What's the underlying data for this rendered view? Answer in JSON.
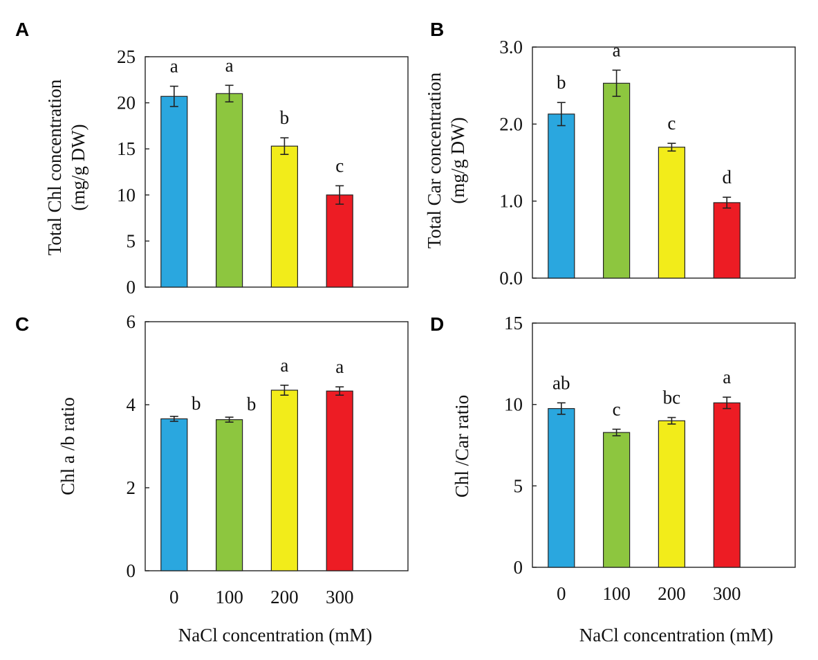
{
  "figure": {
    "xlabel": "NaCl concentration  (mM)",
    "categories": [
      "0",
      "100",
      "200",
      "300"
    ],
    "bar_colors": [
      "#2aa7df",
      "#8dc63f",
      "#f2ec1a",
      "#ed1c24"
    ]
  },
  "chart_data": [
    {
      "panel": "A",
      "type": "bar",
      "ylabel_lines": [
        "Total Chl concentration",
        "(mg/g DW)"
      ],
      "categories": [
        "0",
        "100",
        "200",
        "300"
      ],
      "values": [
        20.7,
        21.0,
        15.3,
        10.0
      ],
      "errors": [
        1.1,
        0.9,
        0.9,
        1.0
      ],
      "letters": [
        "a",
        "a",
        "b",
        "c"
      ],
      "ylim": [
        0,
        25
      ],
      "yticks": [
        0,
        5,
        10,
        15,
        20,
        25
      ],
      "ytick_labels": [
        "0",
        "5",
        "10",
        "15",
        "20",
        "25"
      ],
      "show_xticklabels": false
    },
    {
      "panel": "B",
      "type": "bar",
      "ylabel_lines": [
        "Total Car concentration",
        "(mg/g DW)"
      ],
      "categories": [
        "0",
        "100",
        "200",
        "300"
      ],
      "values": [
        2.13,
        2.53,
        1.7,
        0.98
      ],
      "errors": [
        0.15,
        0.17,
        0.05,
        0.07
      ],
      "letters": [
        "b",
        "a",
        "c",
        "d"
      ],
      "ylim": [
        0,
        3
      ],
      "yticks": [
        0,
        1,
        2,
        3
      ],
      "ytick_labels": [
        "0.0",
        "1.0",
        "2.0",
        "3.0"
      ],
      "show_xticklabels": false
    },
    {
      "panel": "C",
      "type": "bar",
      "ylabel_lines": [
        "Chl a /b ratio"
      ],
      "categories": [
        "0",
        "100",
        "200",
        "300"
      ],
      "values": [
        3.66,
        3.64,
        4.35,
        4.33
      ],
      "errors": [
        0.06,
        0.06,
        0.12,
        0.1
      ],
      "letters": [
        "b",
        "b",
        "a",
        "a"
      ],
      "letter_offset": "right",
      "ylim": [
        0,
        6
      ],
      "yticks": [
        0,
        2,
        4,
        6
      ],
      "ytick_labels": [
        "0",
        "2",
        "4",
        "6"
      ],
      "show_xticklabels": true
    },
    {
      "panel": "D",
      "type": "bar",
      "ylabel_lines": [
        "Chl /Car ratio"
      ],
      "categories": [
        "0",
        "100",
        "200",
        "300"
      ],
      "values": [
        9.75,
        8.28,
        9.0,
        10.1
      ],
      "errors": [
        0.35,
        0.2,
        0.2,
        0.35
      ],
      "letters": [
        "ab",
        "c",
        "bc",
        "a"
      ],
      "ylim": [
        0,
        15
      ],
      "yticks": [
        0,
        5,
        10,
        15
      ],
      "ytick_labels": [
        "0",
        "5",
        "10",
        "15"
      ],
      "show_xticklabels": true
    }
  ]
}
